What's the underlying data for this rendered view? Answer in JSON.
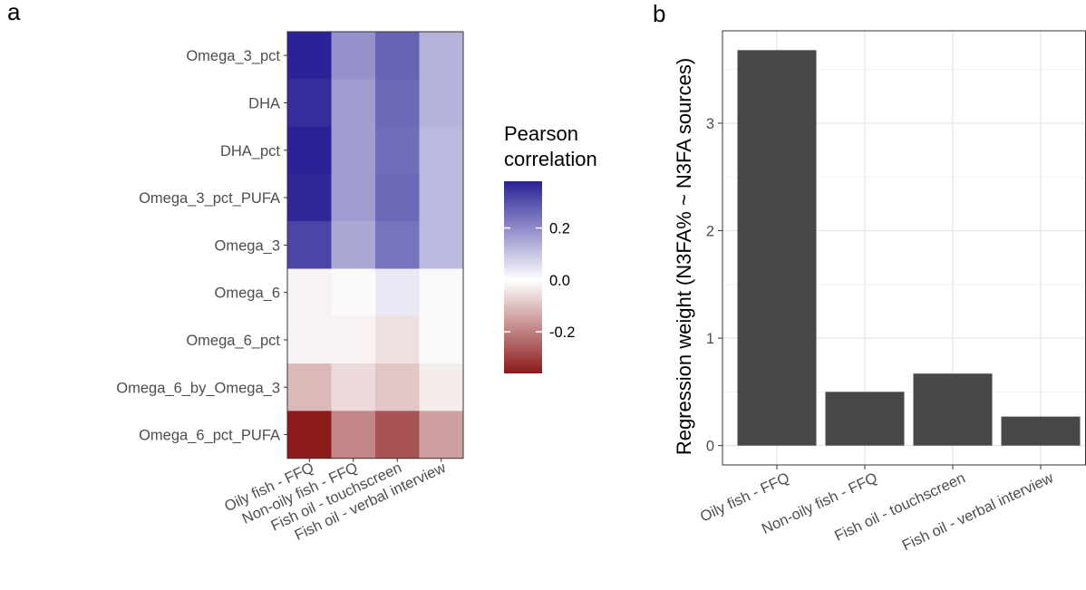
{
  "panels": {
    "a_label": "a",
    "b_label": "b"
  },
  "chart_data": [
    {
      "type": "heatmap",
      "rows": [
        "Omega_3_pct",
        "DHA",
        "DHA_pct",
        "Omega_3_pct_PUFA",
        "Omega_3",
        "Omega_6",
        "Omega_6_pct",
        "Omega_6_by_Omega_3",
        "Omega_6_pct_PUFA"
      ],
      "columns": [
        "Oily fish - FFQ",
        "Non-oily fish - FFQ",
        "Fish oil - touchscreen",
        "Fish oil - verbal interview"
      ],
      "values": [
        [
          0.38,
          0.19,
          0.27,
          0.13
        ],
        [
          0.36,
          0.17,
          0.26,
          0.13
        ],
        [
          0.38,
          0.17,
          0.25,
          0.12
        ],
        [
          0.37,
          0.17,
          0.26,
          0.12
        ],
        [
          0.32,
          0.15,
          0.24,
          0.12
        ],
        [
          -0.02,
          -0.01,
          0.04,
          0.01
        ],
        [
          -0.02,
          -0.02,
          -0.05,
          0.01
        ],
        [
          -0.11,
          -0.06,
          -0.09,
          -0.03
        ],
        [
          -0.36,
          -0.19,
          -0.27,
          -0.15
        ]
      ],
      "legend": {
        "title_line1": "Pearson",
        "title_line2": "correlation",
        "ticks": [
          0.2,
          0.0,
          -0.2
        ],
        "tick_labels": [
          "0.2",
          "0.0",
          "-0.2"
        ],
        "range": [
          -0.36,
          0.38
        ]
      },
      "colors": {
        "low": "#8b1a1a",
        "mid": "#ffffff",
        "high": "#2a2296"
      }
    },
    {
      "type": "bar",
      "categories": [
        "Oily fish - FFQ",
        "Non-oily fish - FFQ",
        "Fish oil - touchscreen",
        "Fish oil - verbal interview"
      ],
      "values": [
        3.68,
        0.5,
        0.67,
        0.27
      ],
      "ylabel": "Regression weight (N3FA% ~ N3FA sources)",
      "yticks": [
        0,
        1,
        2,
        3
      ],
      "ytick_labels": [
        "0",
        "1",
        "2",
        "3"
      ],
      "ylim": [
        -0.18,
        3.86
      ],
      "grid": true,
      "bar_color": "#474747"
    }
  ]
}
